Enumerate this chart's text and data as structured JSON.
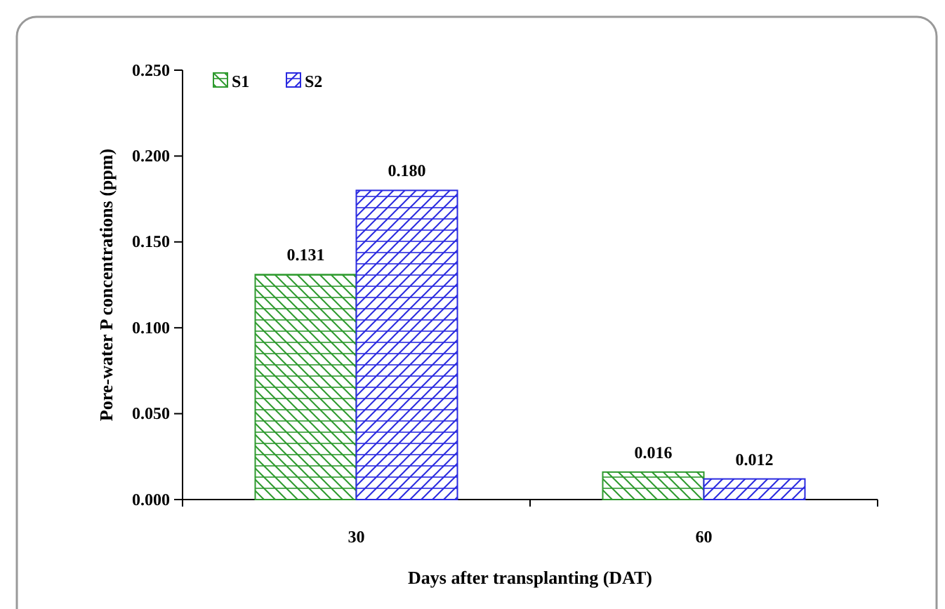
{
  "chart_data": {
    "type": "bar",
    "xlabel": "Days after transplanting (DAT)",
    "ylabel": "Pore-water P concentrations (ppm)",
    "categories": [
      "30",
      "60"
    ],
    "series": [
      {
        "name": "S1",
        "color": "#2e9a2e",
        "values": [
          0.131,
          0.016
        ]
      },
      {
        "name": "S2",
        "color": "#2a2ae0",
        "values": [
          0.18,
          0.012
        ]
      }
    ],
    "ylim": [
      0,
      0.25
    ],
    "yticks": [
      {
        "value": 0,
        "label": "0.000"
      },
      {
        "value": 0.05,
        "label": "0.050"
      },
      {
        "value": 0.1,
        "label": "0.100"
      },
      {
        "value": 0.15,
        "label": "0.150"
      },
      {
        "value": 0.2,
        "label": "0.200"
      },
      {
        "value": 0.25,
        "label": "0.250"
      }
    ],
    "value_labels": [
      [
        "0.131",
        "0.016"
      ],
      [
        "0.180",
        "0.012"
      ]
    ],
    "legend": "top left",
    "grid": false
  }
}
